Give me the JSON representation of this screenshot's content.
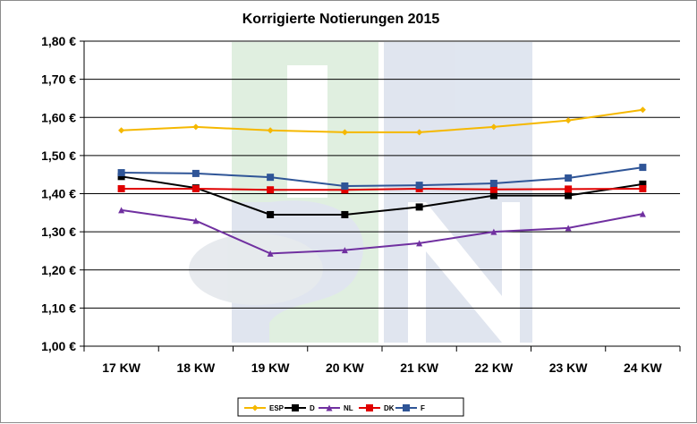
{
  "chart_data": {
    "type": "line",
    "title": "Korrigierte Notierungen 2015",
    "xlabel": "",
    "ylabel": "",
    "categories": [
      "17 KW",
      "18 KW",
      "19 KW",
      "20 KW",
      "21 KW",
      "22 KW",
      "23 KW",
      "24 KW"
    ],
    "ylim": [
      1.0,
      1.8
    ],
    "yticks": [
      1.0,
      1.1,
      1.2,
      1.3,
      1.4,
      1.5,
      1.6,
      1.7,
      1.8
    ],
    "ytick_labels": [
      "1,00 €",
      "1,10 €",
      "1,20 €",
      "1,30 €",
      "1,40 €",
      "1,50 €",
      "1,60 €",
      "1,70 €",
      "1,80 €"
    ],
    "grid": true,
    "legend_position": "bottom",
    "series": [
      {
        "name": "ESP",
        "color": "#f5b800",
        "marker": "diamond",
        "values": [
          1.566,
          1.575,
          1.566,
          1.561,
          1.561,
          1.575,
          1.592,
          1.62
        ]
      },
      {
        "name": "D",
        "color": "#000000",
        "marker": "square",
        "values": [
          1.445,
          1.415,
          1.345,
          1.345,
          1.365,
          1.395,
          1.395,
          1.425
        ]
      },
      {
        "name": "NL",
        "color": "#7030a0",
        "marker": "triangle",
        "values": [
          1.357,
          1.329,
          1.243,
          1.252,
          1.27,
          1.3,
          1.31,
          1.347
        ]
      },
      {
        "name": "DK",
        "color": "#e00000",
        "marker": "square",
        "values": [
          1.413,
          1.413,
          1.41,
          1.41,
          1.413,
          1.411,
          1.412,
          1.413
        ]
      },
      {
        "name": "F",
        "color": "#2f5597",
        "marker": "square",
        "values": [
          1.455,
          1.453,
          1.443,
          1.42,
          1.422,
          1.427,
          1.441,
          1.469
        ]
      }
    ]
  }
}
